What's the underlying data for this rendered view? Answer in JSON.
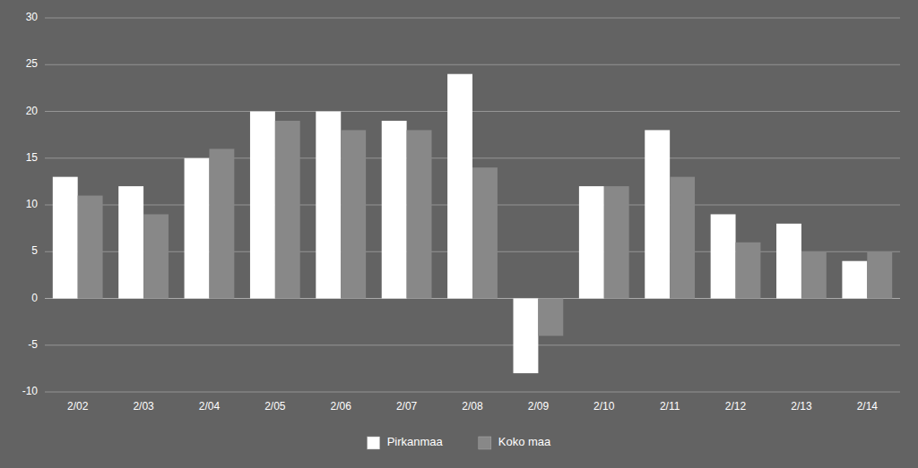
{
  "chart_data": {
    "type": "bar",
    "categories": [
      "2/02",
      "2/03",
      "2/04",
      "2/05",
      "2/06",
      "2/07",
      "2/08",
      "2/09",
      "2/10",
      "2/11",
      "2/12",
      "2/13",
      "2/14"
    ],
    "series": [
      {
        "name": "Pirkanmaa",
        "color": "#ffffff",
        "values": [
          13,
          12,
          15,
          20,
          20,
          19,
          24,
          -8,
          12,
          18,
          9,
          8,
          4
        ]
      },
      {
        "name": "Koko maa",
        "color": "#888888",
        "values": [
          11,
          9,
          16,
          19,
          18,
          18,
          14,
          -4,
          12,
          13,
          6,
          5,
          5
        ]
      }
    ],
    "ylim": [
      -10,
      30
    ],
    "yticks": [
      -10,
      -5,
      0,
      5,
      10,
      15,
      20,
      25,
      30
    ],
    "grid": true,
    "legend": "bottom"
  }
}
